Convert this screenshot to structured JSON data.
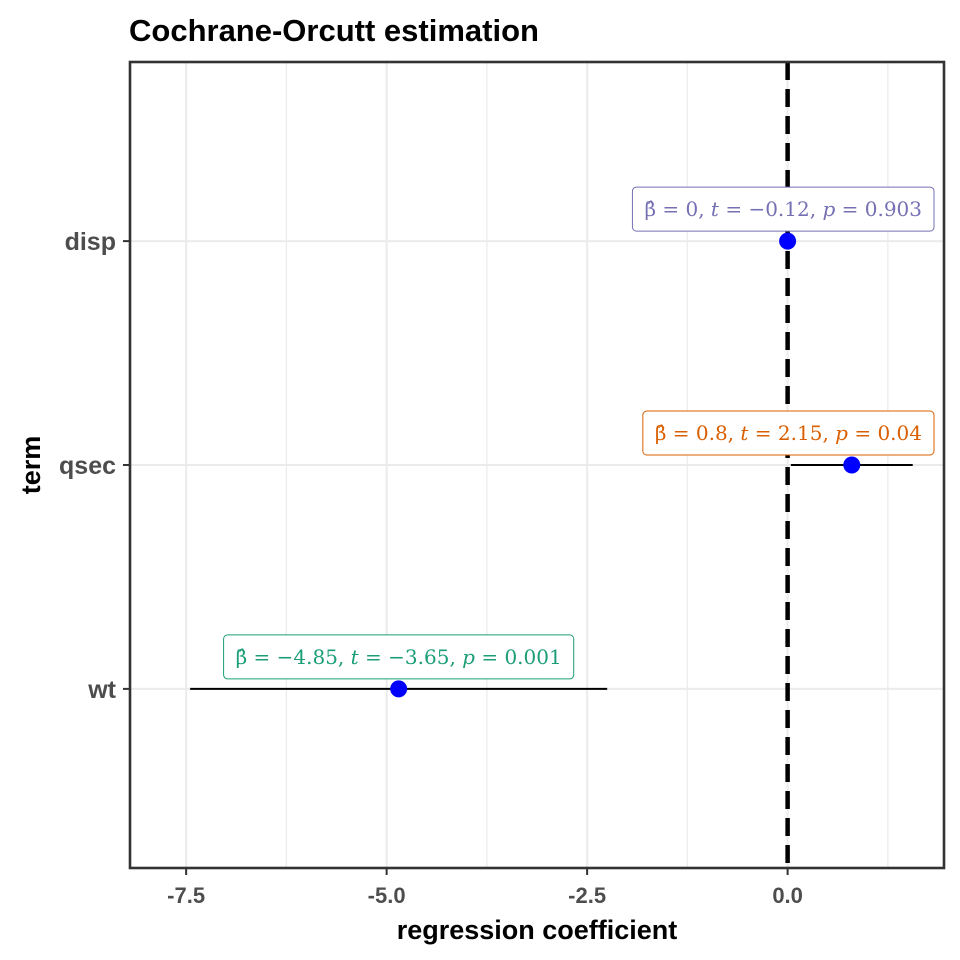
{
  "chart_data": {
    "type": "scatter",
    "title": "Cochrane-Orcutt estimation",
    "xlabel": "regression coefficient",
    "ylabel": "term",
    "xlim": [
      -8.2,
      1.95
    ],
    "x_ticks": [
      -7.5,
      -5.0,
      -2.5,
      0.0
    ],
    "x_tick_labels": [
      "-7.5",
      "-5.0",
      "-2.5",
      "0.0"
    ],
    "grid": true,
    "reference_line": {
      "x": 0,
      "style": "dashed",
      "color": "#000000"
    },
    "point_color": "#0000ff",
    "terms": [
      {
        "term": "disp",
        "estimate": 0.0,
        "conf_low": 0.0,
        "conf_high": 0.0,
        "label": {
          "beta": "0",
          "t": "−0.12",
          "p": "0.903"
        },
        "label_color": "#7570b3"
      },
      {
        "term": "qsec",
        "estimate": 0.8,
        "conf_low": 0.04,
        "conf_high": 1.56,
        "label": {
          "beta": "0.8",
          "t": "2.15",
          "p": "0.04"
        },
        "label_color": "#d95f02"
      },
      {
        "term": "wt",
        "estimate": -4.85,
        "conf_low": -7.45,
        "conf_high": -2.25,
        "label": {
          "beta": "−4.85",
          "t": "−3.65",
          "p": "0.001"
        },
        "label_color": "#1b9e77"
      }
    ]
  }
}
